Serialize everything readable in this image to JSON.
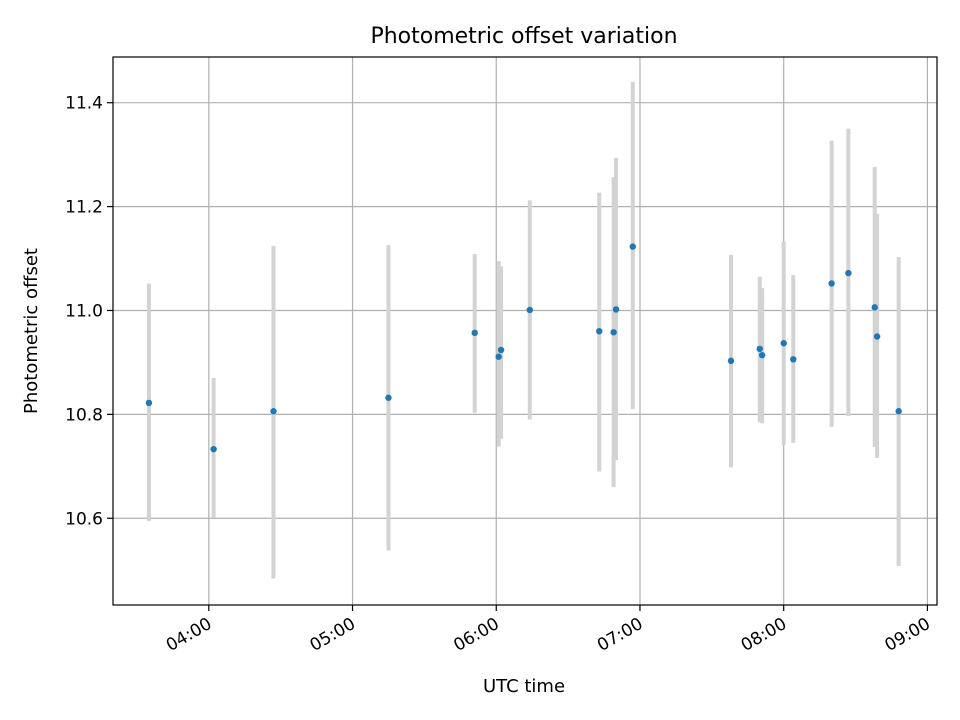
{
  "chart_data": {
    "type": "scatter",
    "title": "Photometric offset variation",
    "xlabel": "UTC time",
    "ylabel": "Photometric offset",
    "xlim": [
      "03:20",
      "09:04"
    ],
    "ylim": [
      10.433,
      11.488
    ],
    "grid": true,
    "x_ticks": [
      "04:00",
      "05:00",
      "06:00",
      "07:00",
      "08:00",
      "09:00"
    ],
    "y_ticks": [
      10.6,
      10.8,
      11.0,
      11.2,
      11.4
    ],
    "colors": {
      "point": "#1f77b4",
      "error_bar": "#d3d3d3"
    },
    "points": [
      {
        "x": "03:35",
        "y": 10.822,
        "y_low": 10.595,
        "y_high": 11.052
      },
      {
        "x": "04:02",
        "y": 10.733,
        "y_low": 10.601,
        "y_high": 10.87
      },
      {
        "x": "04:27",
        "y": 10.806,
        "y_low": 10.484,
        "y_high": 11.124
      },
      {
        "x": "05:15",
        "y": 10.832,
        "y_low": 10.538,
        "y_high": 11.126
      },
      {
        "x": "05:51",
        "y": 10.957,
        "y_low": 10.803,
        "y_high": 11.109
      },
      {
        "x": "06:01",
        "y": 10.911,
        "y_low": 10.738,
        "y_high": 11.095
      },
      {
        "x": "06:02",
        "y": 10.924,
        "y_low": 10.753,
        "y_high": 11.085
      },
      {
        "x": "06:14",
        "y": 11.001,
        "y_low": 10.79,
        "y_high": 11.212
      },
      {
        "x": "06:43",
        "y": 10.96,
        "y_low": 10.69,
        "y_high": 11.227
      },
      {
        "x": "06:49",
        "y": 10.958,
        "y_low": 10.66,
        "y_high": 11.257
      },
      {
        "x": "06:50",
        "y": 11.002,
        "y_low": 10.712,
        "y_high": 11.294
      },
      {
        "x": "06:57",
        "y": 11.123,
        "y_low": 10.81,
        "y_high": 11.44
      },
      {
        "x": "07:38",
        "y": 10.903,
        "y_low": 10.698,
        "y_high": 11.107
      },
      {
        "x": "07:50",
        "y": 10.926,
        "y_low": 10.785,
        "y_high": 11.065
      },
      {
        "x": "07:51",
        "y": 10.914,
        "y_low": 10.783,
        "y_high": 11.043
      },
      {
        "x": "08:00",
        "y": 10.937,
        "y_low": 10.741,
        "y_high": 11.133
      },
      {
        "x": "08:04",
        "y": 10.906,
        "y_low": 10.745,
        "y_high": 11.068
      },
      {
        "x": "08:20",
        "y": 11.052,
        "y_low": 10.776,
        "y_high": 11.327
      },
      {
        "x": "08:27",
        "y": 11.072,
        "y_low": 10.797,
        "y_high": 11.35
      },
      {
        "x": "08:38",
        "y": 11.006,
        "y_low": 10.737,
        "y_high": 11.276
      },
      {
        "x": "08:39",
        "y": 10.95,
        "y_low": 10.716,
        "y_high": 11.186
      },
      {
        "x": "08:48",
        "y": 10.806,
        "y_low": 10.508,
        "y_high": 11.103
      }
    ]
  }
}
